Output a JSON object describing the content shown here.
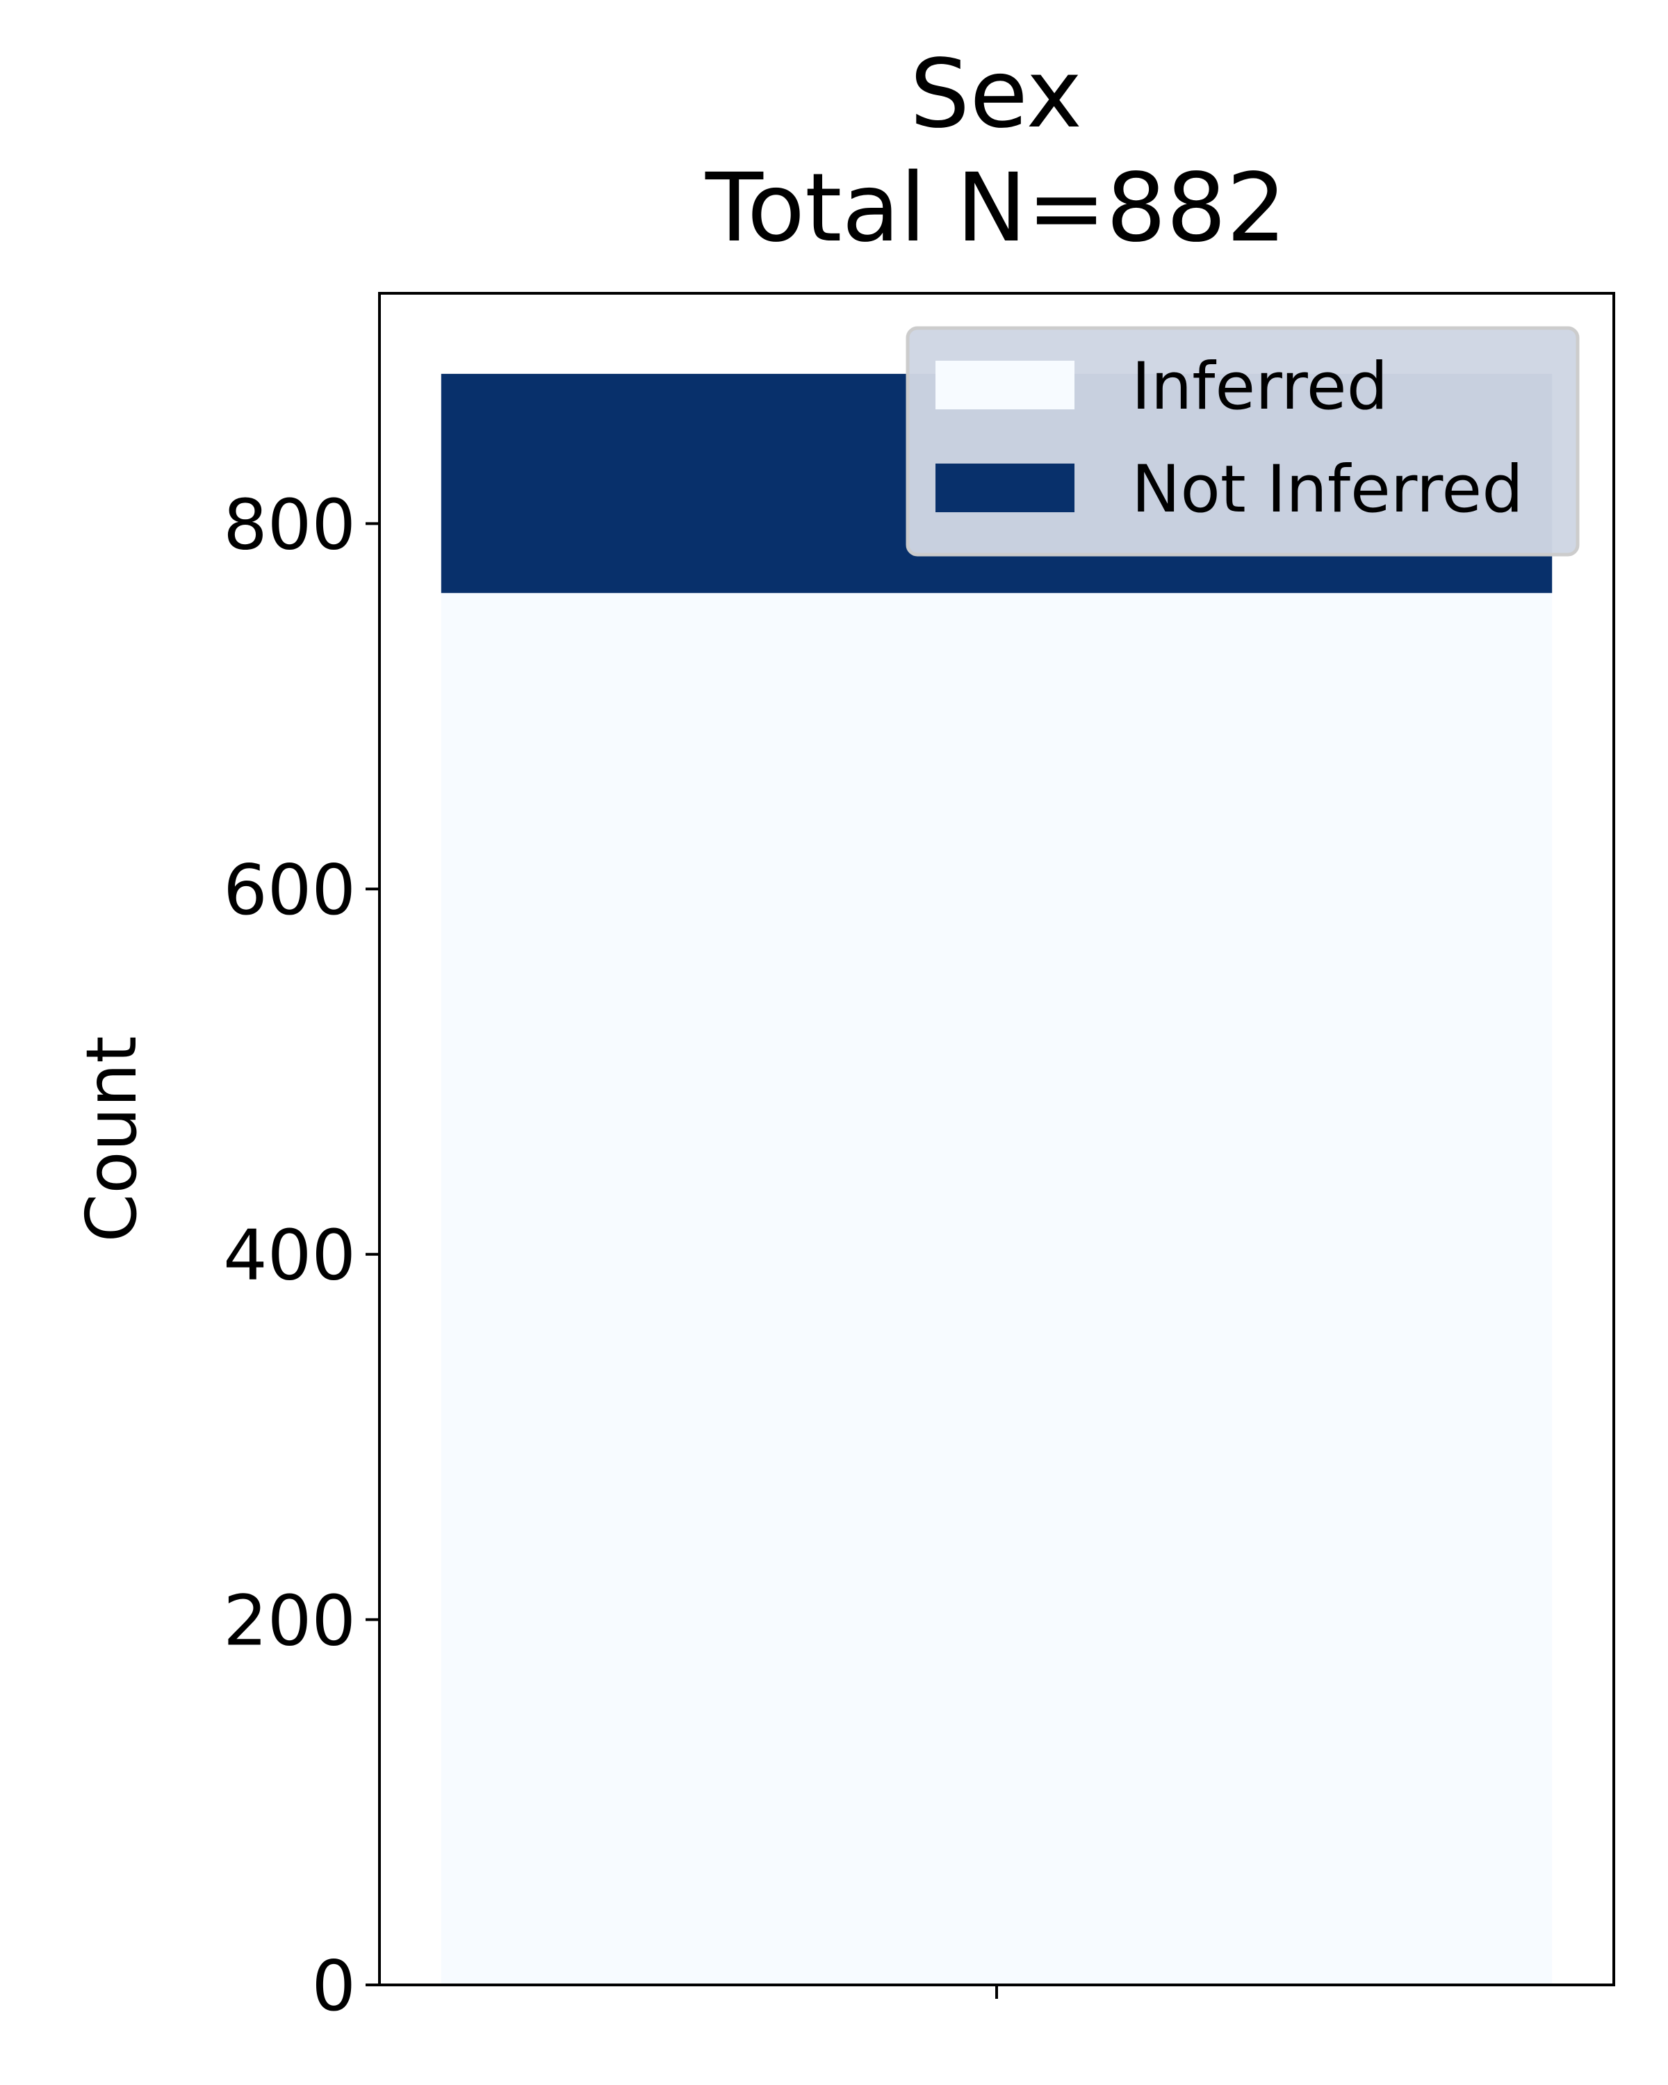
{
  "chart_data": {
    "type": "bar",
    "stacked": true,
    "title": "Sex",
    "subtitle": "Total N=882",
    "xlabel": "",
    "ylabel": "Count",
    "categories": [
      ""
    ],
    "series": [
      {
        "name": "Inferred",
        "values": [
          762
        ],
        "color": "#f7fbff"
      },
      {
        "name": "Not Inferred",
        "values": [
          120
        ],
        "color": "#08306b"
      }
    ],
    "ylim": [
      0,
      926.1
    ],
    "yticks": [
      0,
      200,
      400,
      600,
      800
    ],
    "grid": false,
    "legend": {
      "placement": "top-right",
      "background": "#ced6e3",
      "edge": "#cccccc"
    }
  }
}
